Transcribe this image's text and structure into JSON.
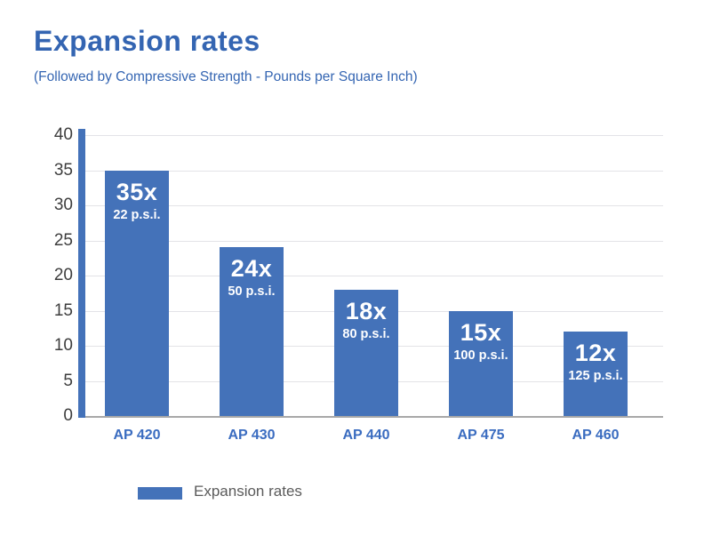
{
  "title": "Expansion rates",
  "subtitle": "(Followed by Compressive Strength - Pounds per Square Inch)",
  "legend": {
    "label": "Expansion rates",
    "swatch_color": "#4472b9"
  },
  "colors": {
    "bar": "#4472b9",
    "title_text": "#3465b2",
    "x_label_text": "#3a6cc0",
    "y_label_text": "#3d3d3d",
    "gridline": "#e3e3e7",
    "baseline": "#a8a8a8",
    "legend_text": "#5a5a5a",
    "bar_label_text": "#ffffff"
  },
  "chart_data": {
    "type": "bar",
    "title": "Expansion rates",
    "subtitle": "(Followed by Compressive Strength - Pounds per Square Inch)",
    "categories": [
      "AP 420",
      "AP 430",
      "AP 440",
      "AP 475",
      "AP 460"
    ],
    "values": [
      35,
      24,
      18,
      15,
      12
    ],
    "bar_labels": [
      {
        "primary": "35x",
        "secondary": "22 p.s.i."
      },
      {
        "primary": "24x",
        "secondary": "50 p.s.i."
      },
      {
        "primary": "18x",
        "secondary": "80 p.s.i."
      },
      {
        "primary": "15x",
        "secondary": "100 p.s.i."
      },
      {
        "primary": "12x",
        "secondary": "125 p.s.i."
      }
    ],
    "xlabel": "",
    "ylabel": "",
    "ylim": [
      0,
      40
    ],
    "yticks": [
      0,
      5,
      10,
      15,
      20,
      25,
      30,
      35,
      40
    ],
    "grid": true,
    "legend_entries": [
      "Expansion rates"
    ],
    "legend_position": "bottom-left"
  }
}
